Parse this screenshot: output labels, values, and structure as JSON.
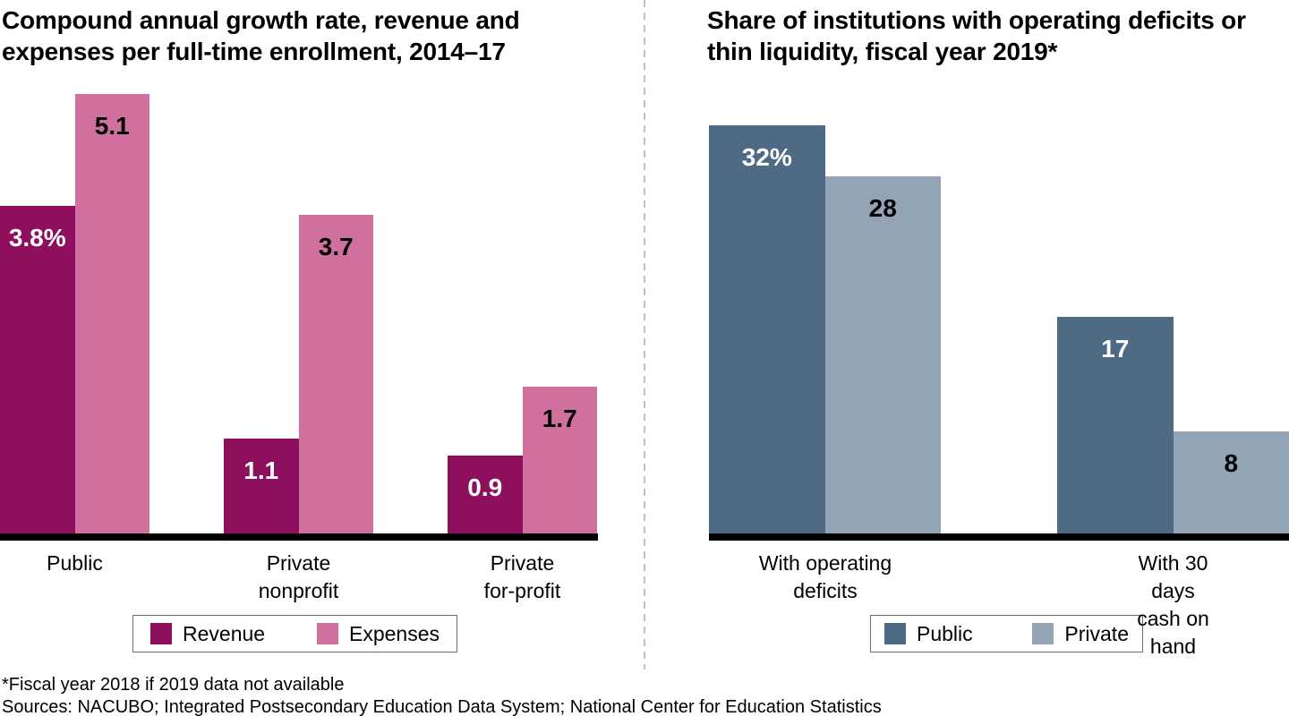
{
  "colors": {
    "revenue": "#8E0F5D",
    "expenses": "#D0709E",
    "public": "#4E6A85",
    "private": "#93A5B5",
    "axis": "#000000",
    "divider": "#BFBFBF"
  },
  "chart_data": [
    {
      "type": "bar",
      "title": "Compound annual growth rate, revenue and\nexpenses per full-time enrollment, 2014–17",
      "categories": [
        "Public",
        "Private\nnonprofit",
        "Private\nfor-profit"
      ],
      "series": [
        {
          "name": "Revenue",
          "color_key": "revenue",
          "values": [
            3.8,
            1.1,
            0.9
          ],
          "labels": [
            "3.8%",
            "1.1",
            "0.9"
          ],
          "label_color": "#ffffff"
        },
        {
          "name": "Expenses",
          "color_key": "expenses",
          "values": [
            5.1,
            3.7,
            1.7
          ],
          "labels": [
            "5.1",
            "3.7",
            "1.7"
          ],
          "label_color": "#000000"
        }
      ],
      "legend": [
        {
          "label": "Revenue",
          "color_key": "revenue"
        },
        {
          "label": "Expenses",
          "color_key": "expenses"
        }
      ],
      "ylim": [
        0,
        5.6
      ],
      "grid": false,
      "legend_position": "bottom"
    },
    {
      "type": "bar",
      "title": "Share of institutions with operating deficits or\nthin liquidity, fiscal year 2019*",
      "categories": [
        "With operating\ndeficits",
        "With 30 days\ncash on hand"
      ],
      "series": [
        {
          "name": "Public",
          "color_key": "public",
          "values": [
            32,
            17
          ],
          "labels": [
            "32%",
            "17"
          ],
          "label_color": "#ffffff"
        },
        {
          "name": "Private",
          "color_key": "private",
          "values": [
            28,
            8
          ],
          "labels": [
            "28",
            "8"
          ],
          "label_color": "#000000"
        }
      ],
      "legend": [
        {
          "label": "Public",
          "color_key": "public"
        },
        {
          "label": "Private",
          "color_key": "private"
        }
      ],
      "ylim": [
        0,
        38
      ],
      "grid": false,
      "legend_position": "bottom"
    }
  ],
  "footer": {
    "footnote": "*Fiscal year 2018 if 2019 data not available",
    "sources": "Sources: NACUBO; Integrated Postsecondary Education Data System; National Center for Education Statistics"
  }
}
